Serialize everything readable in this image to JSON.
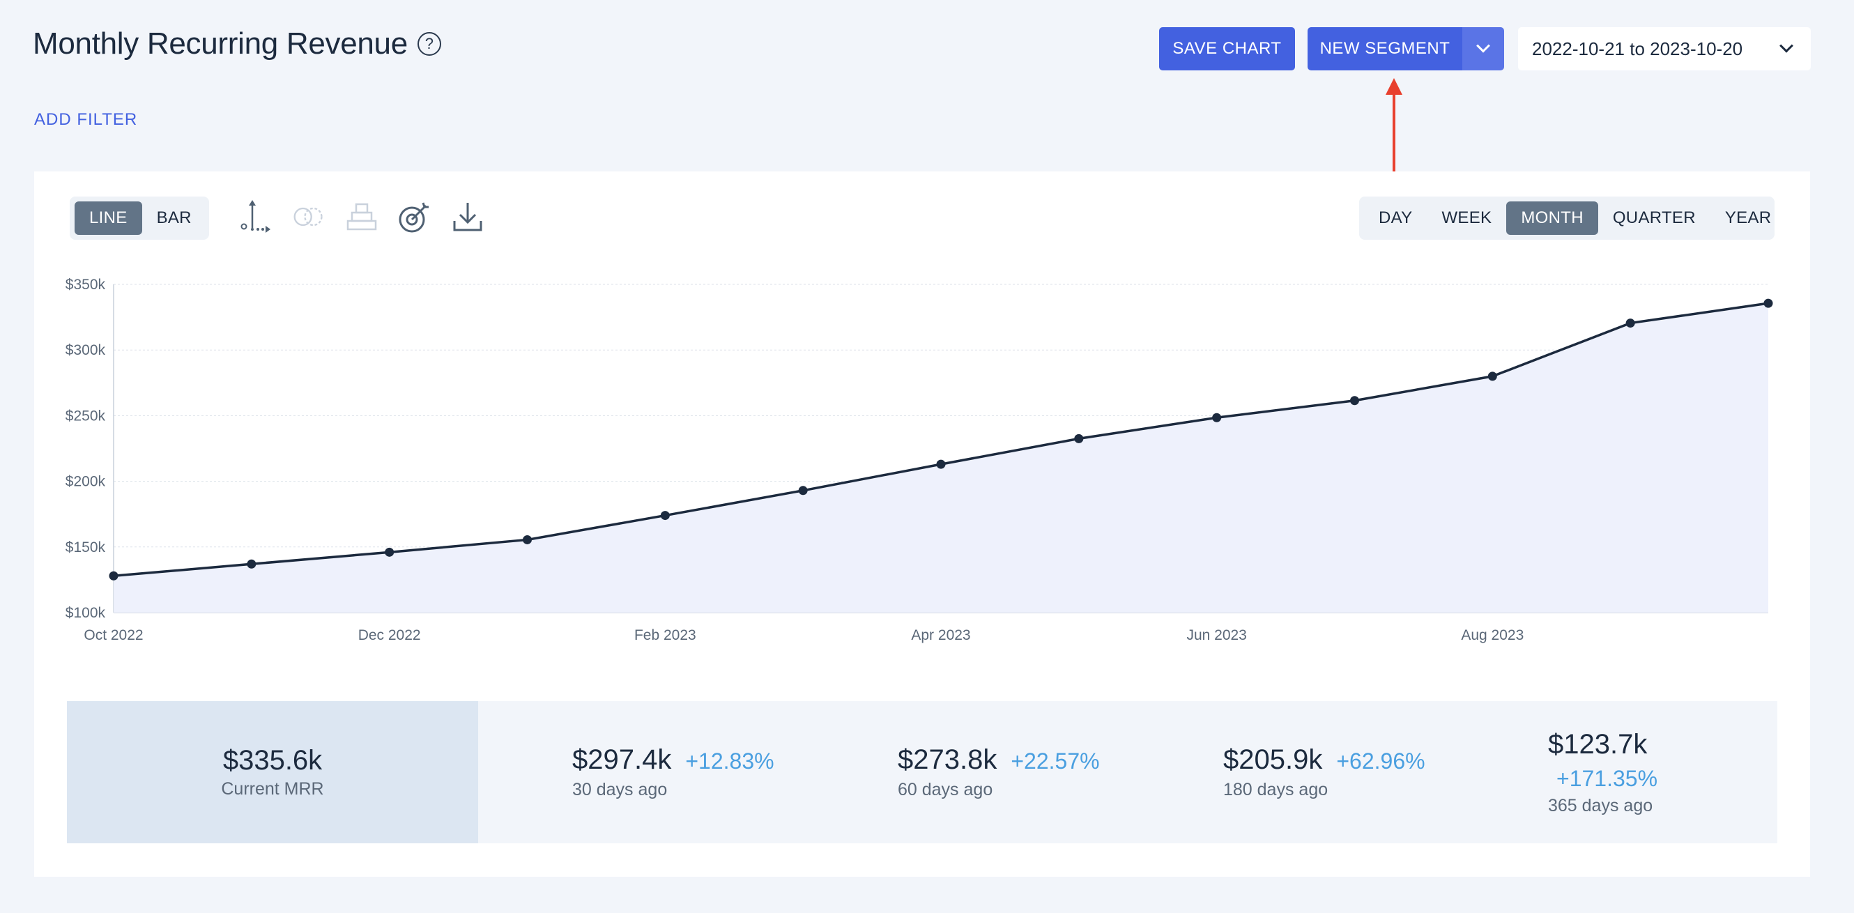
{
  "header": {
    "title": "Monthly Recurring Revenue",
    "help_icon": "?",
    "save_chart_label": "SAVE CHART",
    "new_segment_label": "NEW SEGMENT",
    "date_range": "2022-10-21 to 2023-10-20",
    "add_filter_label": "ADD FILTER"
  },
  "colors": {
    "accent": "#4361e0",
    "annotation_arrow": "#e8402e",
    "line": "#1c2a3e",
    "area": "#eef1fc",
    "positive_change": "#4a9fe0",
    "active_toggle": "#627487"
  },
  "toolbar": {
    "chart_types": [
      {
        "label": "LINE",
        "active": true
      },
      {
        "label": "BAR",
        "active": false
      }
    ],
    "tool_icons": [
      "axis-icon",
      "compare-icon",
      "stack-icon",
      "goal-target-icon",
      "download-icon"
    ],
    "periods": [
      {
        "label": "DAY",
        "active": false
      },
      {
        "label": "WEEK",
        "active": false
      },
      {
        "label": "MONTH",
        "active": true
      },
      {
        "label": "QUARTER",
        "active": false
      },
      {
        "label": "YEAR",
        "active": false
      }
    ]
  },
  "chart_data": {
    "type": "area",
    "x": [
      "Oct 2022",
      "Nov 2022",
      "Dec 2022",
      "Jan 2023",
      "Feb 2023",
      "Mar 2023",
      "Apr 2023",
      "May 2023",
      "Jun 2023",
      "Jul 2023",
      "Aug 2023",
      "Sep 2023",
      "Oct 2023"
    ],
    "values": [
      128,
      137,
      146,
      155.5,
      174,
      193,
      213,
      232.5,
      248.5,
      261.5,
      280,
      320.5,
      335.6
    ],
    "x_tick_labels": [
      "Oct 2022",
      "Dec 2022",
      "Feb 2023",
      "Apr 2023",
      "Jun 2023",
      "Aug 2023"
    ],
    "x_tick_indices": [
      0,
      2,
      4,
      6,
      8,
      10
    ],
    "y_ticks": [
      100,
      150,
      200,
      250,
      300,
      350
    ],
    "y_tick_labels": [
      "$100k",
      "$150k",
      "$200k",
      "$250k",
      "$300k",
      "$350k"
    ],
    "ylim": [
      100,
      350
    ],
    "ylabel": "",
    "xlabel": "",
    "grid": true
  },
  "stats": {
    "current": {
      "value": "$335.6k",
      "label": "Current MRR"
    },
    "comparisons": [
      {
        "value": "$297.4k",
        "change": "+12.83%",
        "label": "30 days ago"
      },
      {
        "value": "$273.8k",
        "change": "+22.57%",
        "label": "60 days ago"
      },
      {
        "value": "$205.9k",
        "change": "+62.96%",
        "label": "180 days ago"
      },
      {
        "value": "$123.7k",
        "change": "+171.35%",
        "label": "365 days ago"
      }
    ]
  }
}
